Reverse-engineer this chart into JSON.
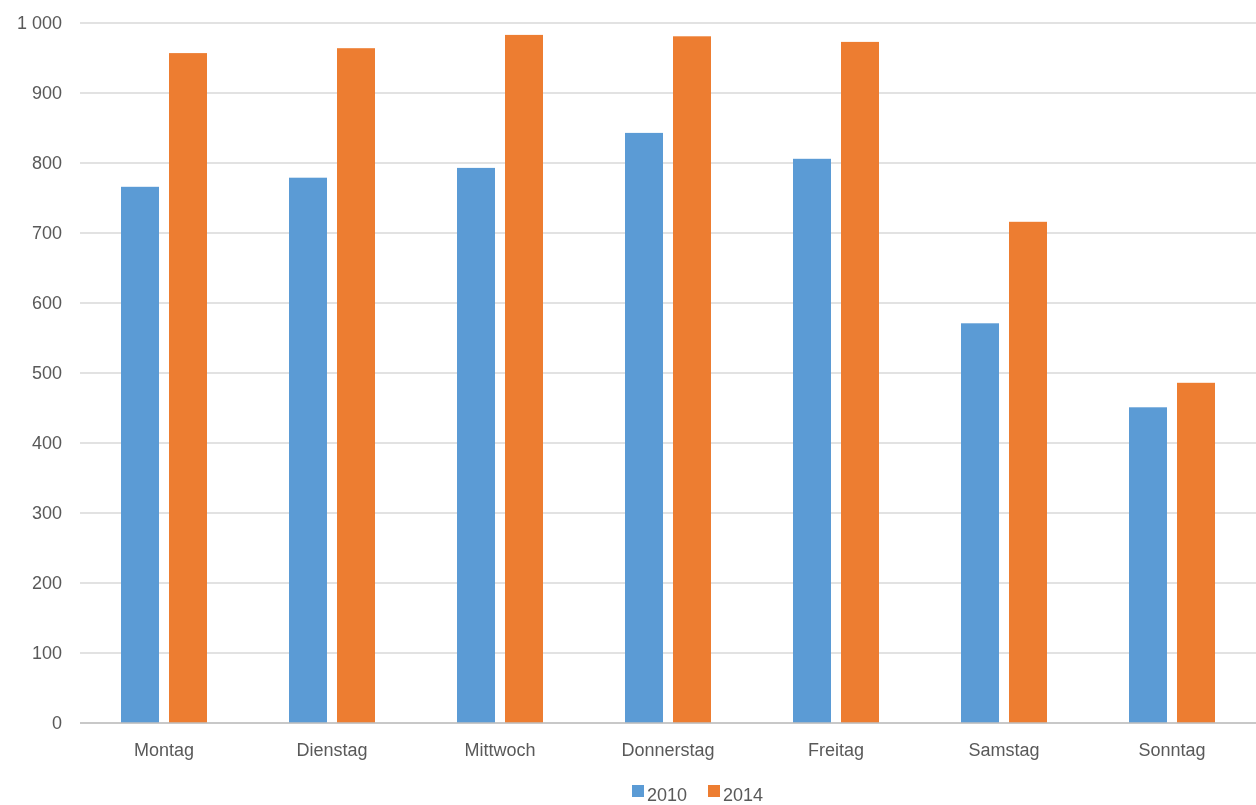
{
  "chart_data": {
    "type": "bar",
    "categories": [
      "Montag",
      "Dienstag",
      "Mittwoch",
      "Donnerstag",
      "Freitag",
      "Samstag",
      "Sonntag"
    ],
    "series": [
      {
        "name": "2010",
        "color": "#5b9bd5",
        "values": [
          766,
          779,
          793,
          843,
          806,
          571,
          451
        ]
      },
      {
        "name": "2014",
        "color": "#ed7d31",
        "values": [
          957,
          964,
          983,
          981,
          973,
          716,
          486
        ]
      }
    ],
    "ylim": [
      0,
      1000
    ],
    "yticks": [
      0,
      100,
      200,
      300,
      400,
      500,
      600,
      700,
      800,
      900,
      {
        "value": 1000,
        "label": "1 000"
      }
    ],
    "grid": "y",
    "legend": "bottom"
  }
}
